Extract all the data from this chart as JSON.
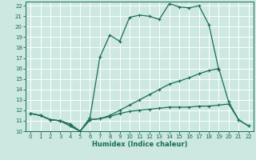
{
  "xlabel": "Humidex (Indice chaleur)",
  "xlim": [
    -0.5,
    22.5
  ],
  "ylim": [
    10,
    22.4
  ],
  "yticks": [
    10,
    11,
    12,
    13,
    14,
    15,
    16,
    17,
    18,
    19,
    20,
    21,
    22
  ],
  "xticks": [
    0,
    1,
    2,
    3,
    4,
    5,
    6,
    7,
    8,
    9,
    10,
    11,
    12,
    13,
    14,
    15,
    16,
    17,
    18,
    19,
    20,
    21,
    22
  ],
  "line_color": "#1a6b5a",
  "bg_color": "#cce8e0",
  "grid_color": "#ffffff",
  "line1_x": [
    0,
    1,
    2,
    3,
    4,
    5,
    6,
    7,
    8,
    9,
    10,
    11,
    12,
    13,
    14,
    15,
    16,
    17,
    18,
    19
  ],
  "line1_y": [
    11.7,
    11.5,
    11.1,
    11.0,
    10.7,
    10.0,
    11.3,
    17.1,
    19.2,
    18.6,
    20.9,
    21.1,
    21.0,
    20.7,
    22.2,
    21.9,
    21.8,
    22.0,
    20.2,
    15.9
  ],
  "line2_x": [
    0,
    1,
    2,
    3,
    4,
    5,
    6,
    7,
    8,
    9,
    10,
    11,
    12,
    13,
    14,
    15,
    16,
    17,
    18,
    19,
    20,
    21,
    22
  ],
  "line2_y": [
    11.7,
    11.5,
    11.1,
    11.0,
    10.5,
    10.0,
    11.1,
    11.2,
    11.5,
    12.0,
    12.5,
    13.0,
    13.5,
    14.0,
    14.5,
    14.8,
    15.1,
    15.5,
    15.8,
    16.0,
    12.8,
    11.1,
    10.5
  ],
  "line3_x": [
    0,
    1,
    2,
    3,
    4,
    5,
    6,
    7,
    8,
    9,
    10,
    11,
    12,
    13,
    14,
    15,
    16,
    17,
    18,
    19,
    20,
    21,
    22
  ],
  "line3_y": [
    11.7,
    11.5,
    11.1,
    11.0,
    10.5,
    10.0,
    11.1,
    11.2,
    11.4,
    11.7,
    11.9,
    12.0,
    12.1,
    12.2,
    12.3,
    12.3,
    12.3,
    12.4,
    12.4,
    12.5,
    12.6,
    11.1,
    10.5
  ]
}
